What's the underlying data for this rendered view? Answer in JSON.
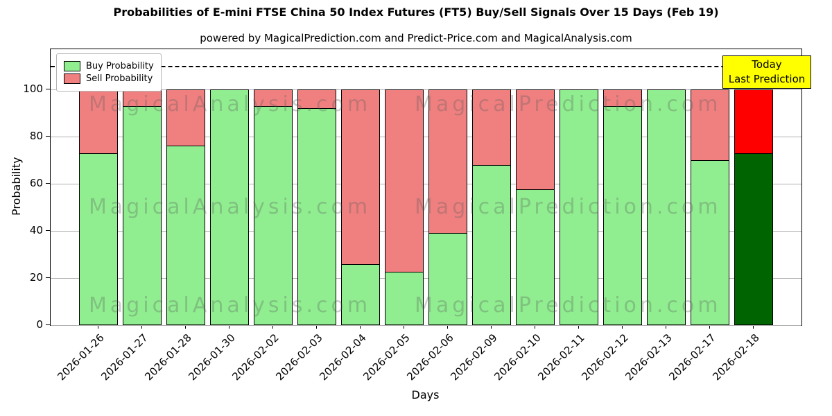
{
  "chart": {
    "title": "Probabilities of E-mini FTSE China 50 Index Futures (FT5) Buy/Sell Signals Over 15 Days (Feb 19)",
    "subtitle": "powered by MagicalPrediction.com and Predict-Price.com and MagicalAnalysis.com",
    "xlabel": "Days",
    "ylabel": "Probability",
    "today_box": {
      "line1": "Today",
      "line2": "Last Prediction",
      "bg": "#FFFF00"
    },
    "watermarks": {
      "left": "MagicalAnalysis.com",
      "right": "MagicalPrediction.com"
    }
  },
  "chart_data": {
    "type": "bar",
    "stacked": true,
    "title": "Probabilities of E-mini FTSE China 50 Index Futures (FT5) Buy/Sell Signals Over 15 Days (Feb 19)",
    "xlabel": "Days",
    "ylabel": "Probability",
    "categories": [
      "2026-01-26",
      "2026-01-27",
      "2026-01-28",
      "2026-01-30",
      "2026-02-02",
      "2026-02-03",
      "2026-02-04",
      "2026-02-05",
      "2026-02-06",
      "2026-02-09",
      "2026-02-10",
      "2026-02-11",
      "2026-02-12",
      "2026-02-13",
      "2026-02-17",
      "2026-02-18"
    ],
    "series": [
      {
        "name": "Buy Probability",
        "color": "#90EE90",
        "values": [
          73,
          93,
          76,
          100,
          93,
          92,
          26,
          22.5,
          39,
          68,
          57.5,
          100,
          93,
          100,
          70,
          73
        ]
      },
      {
        "name": "Sell Probability",
        "color": "#F08080",
        "values": [
          27,
          7,
          24,
          0,
          7,
          8,
          74,
          77.5,
          61,
          32,
          42.5,
          0,
          7,
          0,
          30,
          27
        ]
      }
    ],
    "last_bar_colors": {
      "buy": "#006400",
      "sell": "#FF0000"
    },
    "yticks": [
      0,
      20,
      40,
      60,
      80,
      100
    ],
    "ylim": [
      0,
      117
    ],
    "dashed_line_y": 110,
    "grid": true,
    "legend_position": "upper left"
  }
}
